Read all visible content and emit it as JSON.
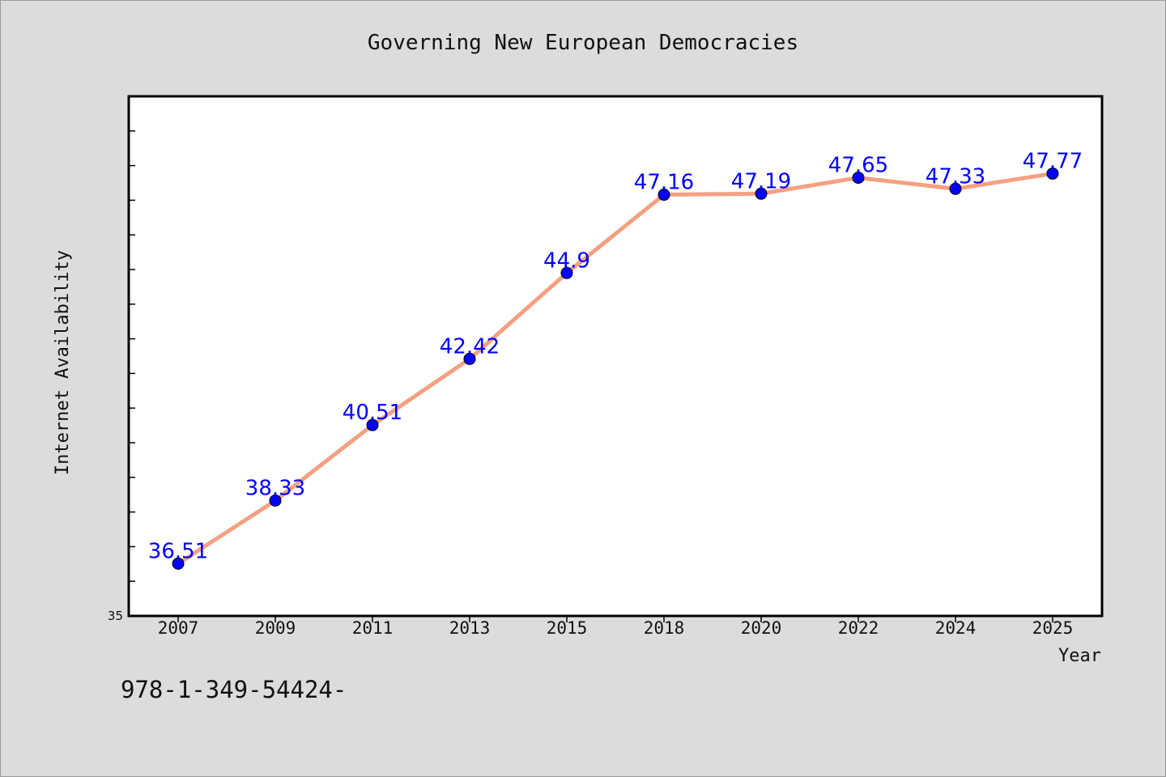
{
  "chart_data": {
    "type": "line",
    "title": "Governing New European Democracies",
    "xlabel": "Year",
    "ylabel": "Internet Availability",
    "categories": [
      "2007",
      "2009",
      "2011",
      "2013",
      "2015",
      "2018",
      "2020",
      "2022",
      "2024",
      "2025"
    ],
    "series": [
      {
        "values": [
          36.51,
          38.33,
          40.51,
          42.42,
          44.9,
          47.16,
          47.19,
          47.65,
          47.33,
          47.77
        ]
      }
    ],
    "data_labels": [
      "36.51",
      "38.33",
      "40.51",
      "42.42",
      "44.9",
      "47.16",
      "47.19",
      "47.65",
      "47.33",
      "47.77"
    ],
    "ylim": [
      35,
      50
    ],
    "y_tick_labels": [
      "35"
    ],
    "grid": false,
    "legend": "none",
    "colors": {
      "line": "#f4a082",
      "marker": "#0000ff",
      "data_label": "#0000ff",
      "background": "#dcdcdc",
      "plot_area": "#ffffff"
    }
  },
  "footer": {
    "text": "978-1-349-54424-"
  }
}
